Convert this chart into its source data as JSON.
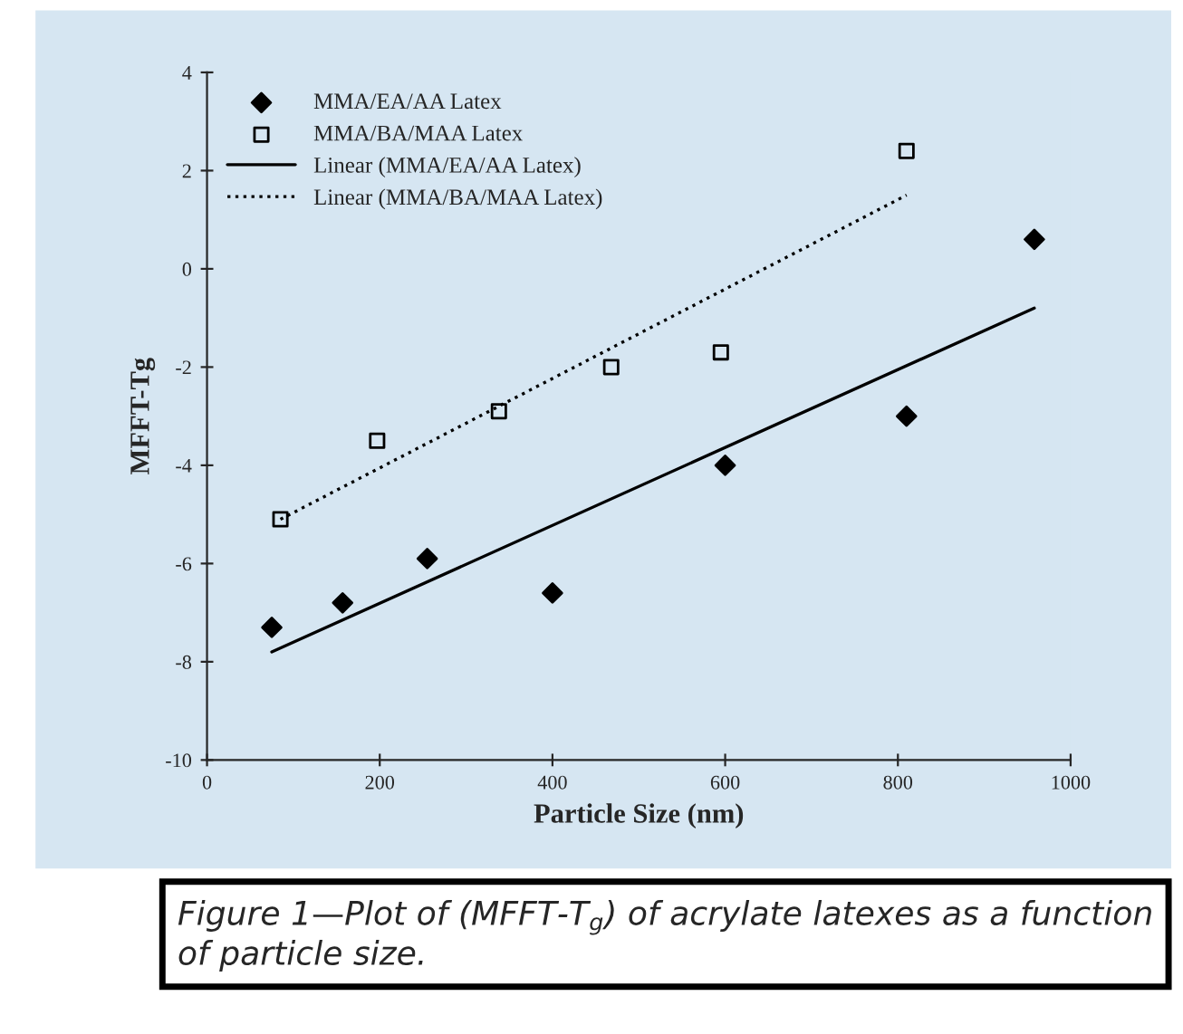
{
  "chart_data": {
    "type": "scatter",
    "xlabel": "Particle Size (nm)",
    "ylabel": "MFFT-Tg",
    "xlim": [
      0,
      1000
    ],
    "xticks": [
      0,
      200,
      400,
      600,
      800,
      1000
    ],
    "ylim": [
      -10,
      4
    ],
    "yticks": [
      -10,
      -8,
      -6,
      -4,
      -2,
      0,
      2,
      4
    ],
    "grid": false,
    "legend": "top left",
    "series": [
      {
        "name": "MMA/EA/AA Latex",
        "marker": "diamond",
        "color": "#000000",
        "x": [
          75,
          157,
          255,
          400,
          600,
          810,
          958
        ],
        "values": [
          -7.3,
          -6.8,
          -5.9,
          -6.6,
          -4.0,
          -3.0,
          0.6
        ]
      },
      {
        "name": "MMA/BA/MAA Latex",
        "marker": "square",
        "color": "#000000",
        "x": [
          85,
          197,
          338,
          468,
          595,
          810
        ],
        "values": [
          -5.1,
          -3.5,
          -2.9,
          -2.0,
          -1.7,
          2.4
        ]
      },
      {
        "name": "Linear (MMA/EA/AA Latex)",
        "type": "line",
        "line_style": "solid",
        "color": "#000000",
        "x": [
          75,
          958
        ],
        "values": [
          -7.8,
          -0.8
        ]
      },
      {
        "name": "Linear (MMA/BA/MAA Latex)",
        "type": "line",
        "line_style": "dotted",
        "color": "#000000",
        "x": [
          85,
          810
        ],
        "values": [
          -5.1,
          1.5
        ]
      }
    ],
    "annotations": [
      "Figure 1—Plot of (MFFT-T$_{g}$) of acrylate latexes as a function of particle size."
    ]
  }
}
